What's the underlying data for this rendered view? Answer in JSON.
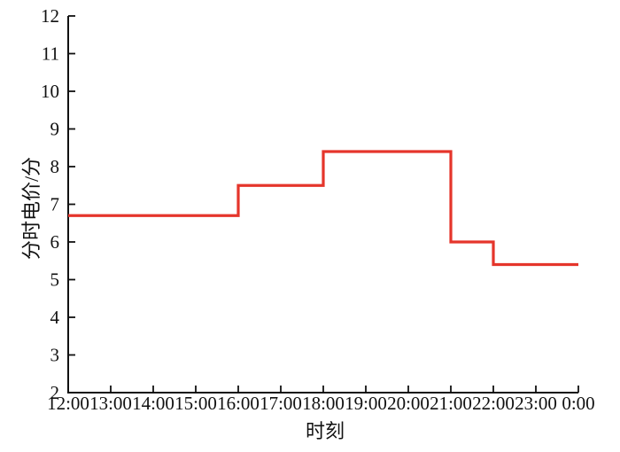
{
  "chart_data": {
    "type": "line",
    "style": "step",
    "title": "",
    "xlabel": "时刻",
    "ylabel": "分时电价/分",
    "x_ticks": [
      "12:00",
      "13:00",
      "14:00",
      "15:00",
      "16:00",
      "17:00",
      "18:00",
      "19:00",
      "20:00",
      "21:00",
      "22:00",
      "23:00",
      "0:00"
    ],
    "y_ticks": [
      2,
      3,
      4,
      5,
      6,
      7,
      8,
      9,
      10,
      11,
      12
    ],
    "ylim": [
      2,
      12
    ],
    "grid": false,
    "legend": "none",
    "steps": [
      {
        "from": "12:00",
        "to": "16:00",
        "value": 6.7
      },
      {
        "from": "16:00",
        "to": "18:00",
        "value": 7.5
      },
      {
        "from": "18:00",
        "to": "21:00",
        "value": 8.4
      },
      {
        "from": "21:00",
        "to": "22:00",
        "value": 6.0
      },
      {
        "from": "22:00",
        "to": "0:00",
        "value": 5.4
      }
    ],
    "colors": {
      "line": "#e5352b",
      "axis": "#111111",
      "background": "#ffffff"
    }
  }
}
